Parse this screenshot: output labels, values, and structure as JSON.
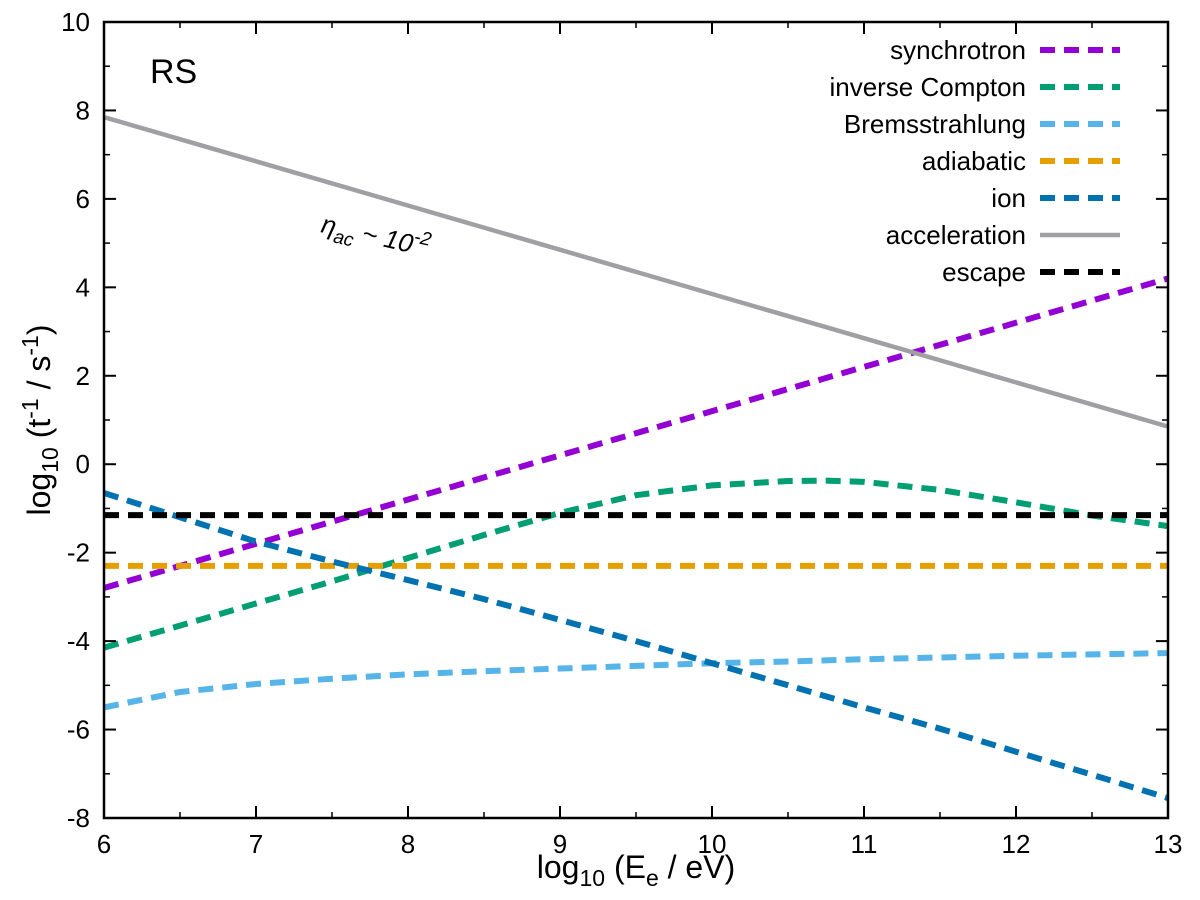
{
  "chart_data": {
    "type": "line",
    "panel_label": "RS",
    "xlabel": {
      "prefix": "log",
      "sub": "10",
      "rest": " (E",
      "sub2": "e",
      "tail": " / eV)"
    },
    "ylabel": {
      "prefix": "log",
      "sub": "10",
      "rest": " (t",
      "sup": "-1",
      "mid": " / s",
      "sup2": "-1",
      "tail": ")"
    },
    "xlim": [
      6,
      13
    ],
    "ylim": [
      -8,
      10
    ],
    "xticks": [
      6,
      7,
      8,
      9,
      10,
      11,
      12,
      13
    ],
    "yticks": [
      -8,
      -6,
      -4,
      -2,
      0,
      2,
      4,
      6,
      8,
      10
    ],
    "xtick_labels": [
      "6",
      "7",
      "8",
      "9",
      "10",
      "11",
      "12",
      "13"
    ],
    "ytick_labels": [
      "-8",
      "-6",
      "-4",
      "-2",
      "0",
      "2",
      "4",
      "6",
      "8",
      "10"
    ],
    "annotation": {
      "eta": "η",
      "sub": "ac",
      "approx": " ~ 10",
      "sup": "-2"
    },
    "legend_position": "top-right",
    "series": [
      {
        "name": "synchrotron",
        "color": "#9400d3",
        "style": "dashed",
        "x": [
          6,
          13
        ],
        "y": [
          -2.8,
          4.2
        ]
      },
      {
        "name": "inverse Compton",
        "color": "#009e73",
        "style": "dashed",
        "x": [
          6,
          6.5,
          7,
          7.5,
          8,
          8.5,
          9,
          9.5,
          10,
          10.5,
          10.75,
          11,
          11.5,
          12,
          12.5,
          13
        ],
        "y": [
          -4.15,
          -3.65,
          -3.15,
          -2.65,
          -2.12,
          -1.6,
          -1.1,
          -0.7,
          -0.48,
          -0.38,
          -0.37,
          -0.4,
          -0.58,
          -0.86,
          -1.16,
          -1.4
        ]
      },
      {
        "name": "Bremsstrahlung",
        "color": "#56b4e9",
        "style": "dashed",
        "x": [
          6,
          6.5,
          7,
          7.5,
          8,
          8.5,
          9,
          9.5,
          10,
          10.5,
          11,
          11.5,
          12,
          12.5,
          13
        ],
        "y": [
          -5.5,
          -5.15,
          -4.97,
          -4.85,
          -4.75,
          -4.68,
          -4.62,
          -4.56,
          -4.5,
          -4.46,
          -4.41,
          -4.37,
          -4.33,
          -4.3,
          -4.27
        ]
      },
      {
        "name": "adiabatic",
        "color": "#e69f00",
        "style": "dashed",
        "x": [
          6,
          13
        ],
        "y": [
          -2.3,
          -2.3
        ]
      },
      {
        "name": "ion",
        "color": "#0072b2",
        "style": "dashed",
        "x": [
          6,
          6.5,
          7,
          7.5,
          8,
          8.5,
          9,
          9.5,
          10,
          10.5,
          11,
          11.5,
          12,
          12.5,
          13
        ],
        "y": [
          -0.65,
          -1.2,
          -1.75,
          -2.2,
          -2.62,
          -3.05,
          -3.52,
          -4.0,
          -4.5,
          -5.0,
          -5.5,
          -5.98,
          -6.5,
          -7.02,
          -7.55
        ]
      },
      {
        "name": "acceleration",
        "color": "#a0a0a4",
        "style": "solid",
        "x": [
          6,
          13
        ],
        "y": [
          7.85,
          0.85
        ]
      },
      {
        "name": "escape",
        "color": "#000000",
        "style": "dashed",
        "x": [
          6,
          13
        ],
        "y": [
          -1.15,
          -1.15
        ]
      }
    ]
  }
}
